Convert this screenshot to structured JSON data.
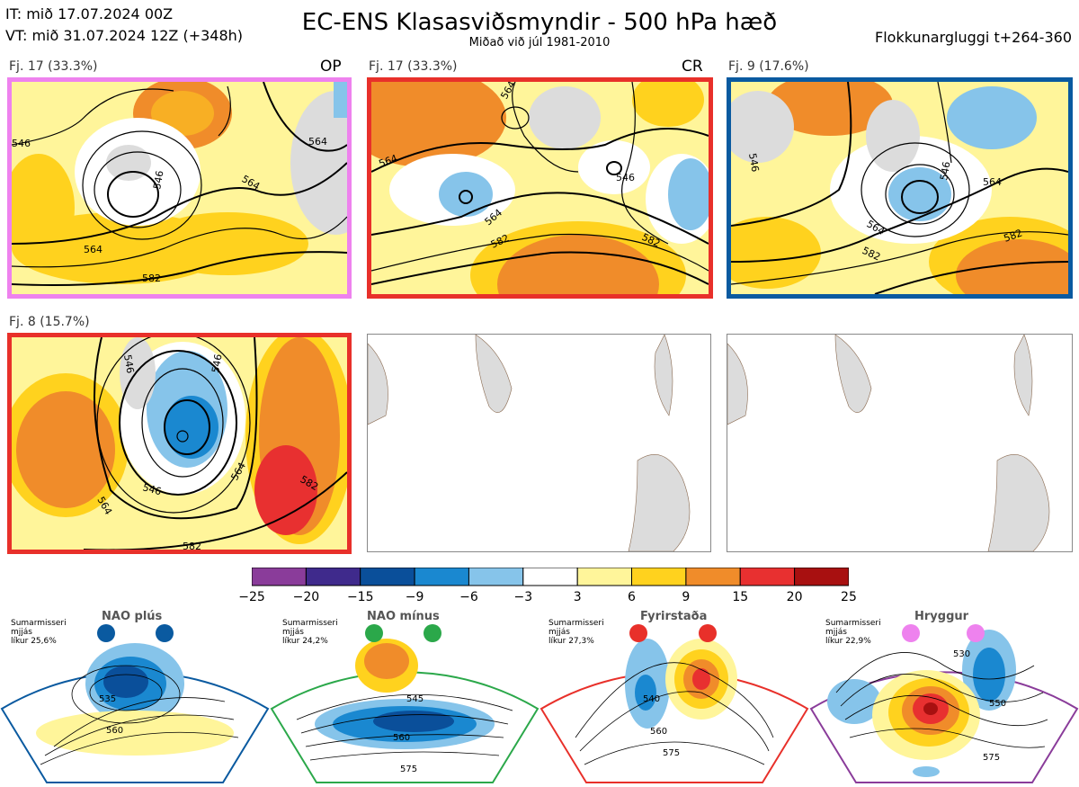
{
  "header": {
    "it_line": "IT: mið 17.07.2024 00Z",
    "vt_line": "VT: mið 31.07.2024 12Z  (+348h)",
    "title": "EC-ENS Klasasviðsmyndir - 500 hPa hæð",
    "subtitle": "Miðað við júl 1981-2010",
    "window": "Flokkunargluggi t+264-360"
  },
  "clusters": [
    {
      "label": "Fj. 17 (33.3%)",
      "tag": "OP",
      "border": "#ee82ee",
      "contours": [
        "546",
        "564",
        "582",
        "564",
        "546",
        "564"
      ]
    },
    {
      "label": "Fj. 17 (33.3%)",
      "tag": "CR",
      "border": "#e8302a",
      "contours": [
        "564",
        "564",
        "546",
        "582",
        "582",
        "564"
      ]
    },
    {
      "label": "Fj. 9 (17.6%)",
      "tag": "",
      "border": "#0a5aa0",
      "contours": [
        "546",
        "546",
        "564",
        "564",
        "582",
        "582"
      ]
    },
    {
      "label": "Fj. 8 (15.7%)",
      "tag": "",
      "border": "#e8302a",
      "contours": [
        "546",
        "546",
        "564",
        "546",
        "564",
        "582",
        "582"
      ]
    }
  ],
  "colorbar": {
    "ticks": [
      "−25",
      "−20",
      "−15",
      "−9",
      "−6",
      "−3",
      "3",
      "6",
      "9",
      "15",
      "20",
      "25"
    ],
    "colors": [
      "#8a3c9a",
      "#3f2a8c",
      "#0a4f9a",
      "#1a88d0",
      "#86c4ea",
      "#ffffff",
      "#fff59a",
      "#ffd21e",
      "#f08c2a",
      "#e83030",
      "#a81010"
    ]
  },
  "regimes": [
    {
      "title": "NAO plús",
      "note": [
        "Sumarmisseri",
        "mjjás",
        "líkur 25,6%"
      ],
      "color": "#0a5aa0",
      "labels": [
        "535",
        "560"
      ]
    },
    {
      "title": "NAO mínus",
      "note": [
        "Sumarmisseri",
        "mjjás",
        "líkur 24,2%"
      ],
      "color": "#2ba84a",
      "labels": [
        "545",
        "560",
        "575"
      ]
    },
    {
      "title": "Fyrirstaða",
      "note": [
        "Sumarmisseri",
        "mjjás",
        "líkur 27,3%"
      ],
      "color": "#e8302a",
      "labels": [
        "540",
        "560",
        "575"
      ]
    },
    {
      "title": "Hryggur",
      "note": [
        "Sumarmisseri",
        "mjjás",
        "líkur 22,9%"
      ],
      "color": "#ee82ee",
      "labels": [
        "530",
        "550",
        "575"
      ]
    }
  ],
  "chart_data": [
    {
      "type": "heatmap",
      "title": "Fj. 17 (33.3%)",
      "tag": "OP",
      "contour_labels": [
        546,
        564,
        582
      ]
    },
    {
      "type": "heatmap",
      "title": "Fj. 17 (33.3%)",
      "tag": "CR",
      "contour_labels": [
        546,
        564,
        582
      ]
    },
    {
      "type": "heatmap",
      "title": "Fj. 9 (17.6%)",
      "contour_labels": [
        546,
        564,
        582
      ]
    },
    {
      "type": "heatmap",
      "title": "Fj. 8 (15.7%)",
      "contour_labels": [
        546,
        564,
        582
      ]
    }
  ]
}
